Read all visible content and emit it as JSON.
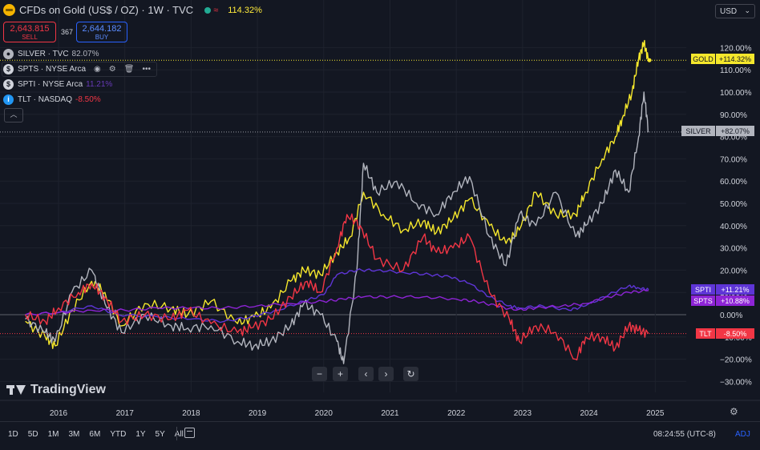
{
  "header": {
    "title": "CFDs on Gold (US$ / OZ) · 1W · TVC",
    "change_pct": "114.32%",
    "sell_price": "2,643.815",
    "sell_label": "SELL",
    "spread": "367",
    "buy_price": "2,644.182",
    "buy_label": "BUY",
    "currency": "USD"
  },
  "legend": [
    {
      "symbol": "SILVER · TVC",
      "value": "82.07%",
      "icon": "silver-symbol-icon",
      "color": "#b2b5be"
    },
    {
      "symbol": "SPTS · NYSE Arca",
      "value": "",
      "icon": "dollar-symbol-icon",
      "color": "#7b1fa2"
    },
    {
      "symbol": "SPTI · NYSE Arca",
      "value": "11.21%",
      "icon": "dollar-symbol-icon",
      "color": "#673ab7"
    },
    {
      "symbol": "TLT · NASDAQ",
      "value": "-8.50%",
      "icon": "info-symbol-icon",
      "color": "#f23645"
    }
  ],
  "brand": "TradingView",
  "bottom": {
    "ranges": [
      "1D",
      "5D",
      "1M",
      "3M",
      "6M",
      "YTD",
      "1Y",
      "5Y",
      "All"
    ],
    "time": "08:24:55 (UTC-8)",
    "adj": "ADJ"
  },
  "colors": {
    "GOLD": "#f5e72c",
    "SILVER": "#b2b5be",
    "SPTI": "#5e35d6",
    "SPTS": "#8e24d6",
    "TLT": "#f23645"
  },
  "chart_data": {
    "type": "line",
    "ylim": [
      -35,
      125
    ],
    "xlim": [
      2015.5,
      2025.1
    ],
    "y_scale": "percent",
    "yticks": [
      -30,
      -20,
      -10,
      0,
      10,
      20,
      30,
      40,
      50,
      60,
      70,
      80,
      90,
      100,
      110,
      120
    ],
    "ytick_labels": [
      "−30.00%",
      "−20.00%",
      "−10.00%",
      "0.00%",
      "10.00%",
      "20.00%",
      "30.00%",
      "40.00%",
      "50.00%",
      "60.00%",
      "70.00%",
      "80.00%",
      "90.00%",
      "100.00%",
      "110.00%",
      "120.00%"
    ],
    "xtick_labels": [
      "2016",
      "2017",
      "2018",
      "2019",
      "2020",
      "2021",
      "2022",
      "2023",
      "2024",
      "2025"
    ],
    "xticks": [
      2016,
      2017,
      2018,
      2019,
      2020,
      2021,
      2022,
      2023,
      2024,
      2025
    ],
    "series": [
      {
        "name": "GOLD",
        "last_label": "+114.32%",
        "x": [
          2015.5,
          2015.8,
          2015.95,
          2016.2,
          2016.5,
          2016.7,
          2016.95,
          2017.3,
          2017.7,
          2017.95,
          2018.3,
          2018.7,
          2018.95,
          2019.2,
          2019.5,
          2019.7,
          2019.95,
          2020.2,
          2020.4,
          2020.6,
          2020.9,
          2021.2,
          2021.5,
          2021.7,
          2021.95,
          2022.2,
          2022.5,
          2022.75,
          2022.95,
          2023.2,
          2023.5,
          2023.8,
          2023.95,
          2024.2,
          2024.4,
          2024.5,
          2024.65,
          2024.75,
          2024.83,
          2024.9
        ],
        "y": [
          -3,
          -10,
          -14,
          2,
          15,
          10,
          -5,
          5,
          3,
          0,
          6,
          -4,
          -1,
          3,
          15,
          20,
          18,
          28,
          35,
          55,
          45,
          38,
          42,
          37,
          43,
          52,
          40,
          32,
          38,
          55,
          45,
          45,
          55,
          70,
          80,
          88,
          100,
          115,
          122,
          114.32
        ]
      },
      {
        "name": "SILVER",
        "last_label": "+82.07%",
        "x": [
          2015.5,
          2015.8,
          2015.95,
          2016.2,
          2016.5,
          2016.7,
          2016.95,
          2017.3,
          2017.7,
          2017.95,
          2018.3,
          2018.7,
          2018.95,
          2019.2,
          2019.5,
          2019.7,
          2019.95,
          2020.2,
          2020.3,
          2020.5,
          2020.6,
          2020.8,
          2021.1,
          2021.4,
          2021.7,
          2021.95,
          2022.2,
          2022.5,
          2022.75,
          2022.95,
          2023.2,
          2023.5,
          2023.8,
          2023.95,
          2024.2,
          2024.4,
          2024.6,
          2024.75,
          2024.83,
          2024.9
        ],
        "y": [
          -2,
          -8,
          -12,
          10,
          20,
          5,
          -8,
          0,
          -5,
          -6,
          -5,
          -12,
          -14,
          -12,
          -5,
          5,
          0,
          -12,
          -22,
          20,
          68,
          55,
          60,
          50,
          45,
          55,
          62,
          35,
          22,
          45,
          40,
          55,
          35,
          40,
          50,
          65,
          55,
          80,
          100,
          82.07
        ]
      },
      {
        "name": "SPTI",
        "last_label": "+11.21%",
        "x": [
          2015.5,
          2016.0,
          2016.5,
          2016.9,
          2017.5,
          2018.0,
          2018.5,
          2018.9,
          2019.3,
          2019.7,
          2020.0,
          2020.2,
          2020.5,
          2020.8,
          2021.2,
          2021.6,
          2021.9,
          2022.2,
          2022.5,
          2022.8,
          2022.95,
          2023.3,
          2023.7,
          2023.95,
          2024.3,
          2024.6,
          2024.75,
          2024.9
        ],
        "y": [
          0,
          1,
          4,
          0,
          -1,
          -2,
          -3,
          -1,
          2,
          6,
          9,
          18,
          20,
          20,
          19,
          18,
          17,
          14,
          8,
          4,
          3,
          4,
          2,
          4,
          9,
          13,
          12,
          11.21
        ]
      },
      {
        "name": "SPTS",
        "last_label": "+10.88%",
        "x": [
          2015.5,
          2016.0,
          2016.5,
          2017.0,
          2017.5,
          2018.0,
          2018.5,
          2019.0,
          2019.5,
          2020.0,
          2020.3,
          2020.6,
          2021.0,
          2021.5,
          2022.0,
          2022.3,
          2022.6,
          2022.9,
          2023.2,
          2023.6,
          2023.95,
          2024.3,
          2024.6,
          2024.9
        ],
        "y": [
          0,
          1,
          2,
          2,
          3,
          3,
          3,
          4,
          5,
          6,
          7,
          8,
          8,
          8,
          7,
          6,
          4,
          2,
          3,
          4,
          5,
          8,
          10,
          10.88
        ]
      },
      {
        "name": "TLT",
        "last_label": "-8.50%",
        "x": [
          2015.5,
          2015.8,
          2016.0,
          2016.3,
          2016.5,
          2016.7,
          2016.95,
          2017.3,
          2017.7,
          2017.95,
          2018.3,
          2018.7,
          2018.9,
          2019.2,
          2019.5,
          2019.75,
          2019.95,
          2020.2,
          2020.35,
          2020.55,
          2020.8,
          2021.2,
          2021.5,
          2021.7,
          2021.95,
          2022.2,
          2022.5,
          2022.8,
          2022.95,
          2023.2,
          2023.5,
          2023.8,
          2023.95,
          2024.2,
          2024.4,
          2024.6,
          2024.75,
          2024.9
        ],
        "y": [
          0,
          -3,
          3,
          10,
          14,
          8,
          -3,
          0,
          -2,
          2,
          -4,
          -8,
          -6,
          -2,
          8,
          15,
          10,
          30,
          45,
          40,
          25,
          20,
          35,
          28,
          30,
          35,
          10,
          -2,
          -12,
          -5,
          -8,
          -20,
          -10,
          -10,
          -15,
          -5,
          -7,
          -8.5
        ]
      }
    ]
  }
}
